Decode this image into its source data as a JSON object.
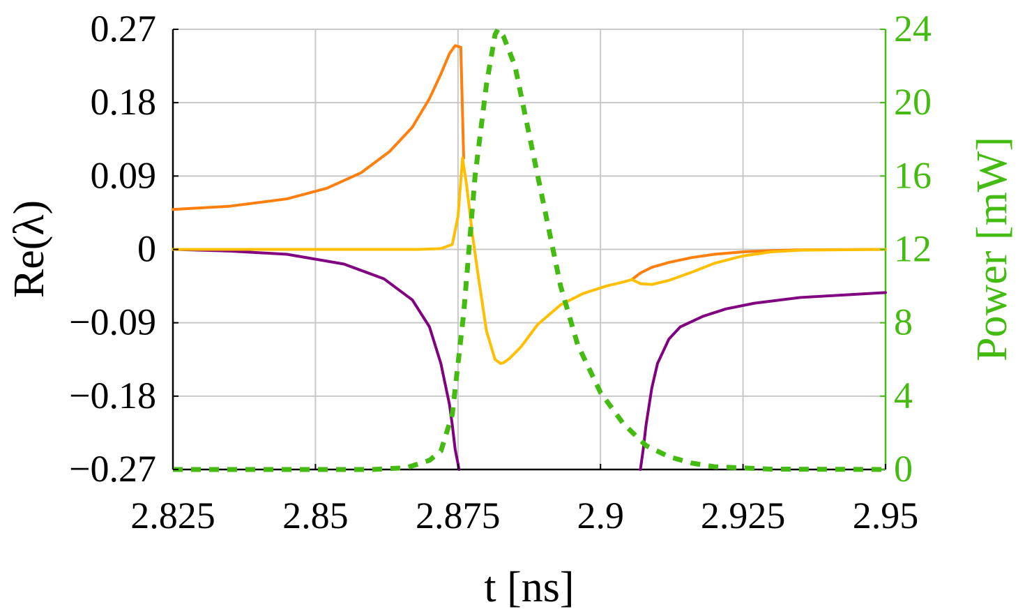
{
  "chart_data": {
    "type": "line",
    "title": "",
    "xlabel": "t [ns]",
    "ylabel_left": "Re(λ)",
    "ylabel_right": "Power [mW]",
    "xlim": [
      2.825,
      2.95
    ],
    "ylim_left": [
      -0.27,
      0.27
    ],
    "ylim_right": [
      0,
      24
    ],
    "grid": true,
    "legend": "none",
    "x_ticks": [
      "2.825",
      "2.85",
      "2.875",
      "2.9",
      "2.925",
      "2.95"
    ],
    "y_left_ticks": [
      "0.27",
      "0.18",
      "0.09",
      "0",
      "−0.09",
      "−0.18",
      "−0.27"
    ],
    "y_right_ticks": [
      "24",
      "20",
      "16",
      "12",
      "8",
      "4",
      "0"
    ],
    "colors": {
      "axis": "#000000",
      "grid": "#c8c8c8",
      "right_axis": "#44bb11",
      "orange": "#ff7f0e",
      "yellow": "#ffbf00",
      "purple": "#800080",
      "green": "#44bb11"
    },
    "series": [
      {
        "axis": "left",
        "color": "#ff7f0e",
        "style": "solid",
        "x": [
          2.825,
          2.835,
          2.845,
          2.852,
          2.858,
          2.863,
          2.867,
          2.87,
          2.872,
          2.8735,
          2.8745,
          2.8755,
          2.876
        ],
        "y": [
          0.049,
          0.053,
          0.062,
          0.075,
          0.094,
          0.12,
          0.15,
          0.185,
          0.215,
          0.24,
          0.25,
          0.248,
          0.112
        ]
      },
      {
        "axis": "left",
        "color": "#ff7f0e",
        "style": "solid",
        "x": [
          2.9055,
          2.907,
          2.909,
          2.912,
          2.916,
          2.92,
          2.925,
          2.93,
          2.935,
          2.95
        ],
        "y": [
          -0.037,
          -0.029,
          -0.022,
          -0.016,
          -0.01,
          -0.006,
          -0.003,
          -0.0015,
          -0.0005,
          0.0
        ]
      },
      {
        "axis": "left",
        "color": "#ffbf00",
        "style": "solid",
        "x": [
          2.825,
          2.86,
          2.868,
          2.872,
          2.874,
          2.875,
          2.8758,
          2.8765,
          2.8775,
          2.8785,
          2.88,
          2.8815,
          2.8825,
          2.883,
          2.884,
          2.886,
          2.889,
          2.893,
          2.897,
          2.901,
          2.904,
          2.9055,
          2.907,
          2.909,
          2.912,
          2.916,
          2.92,
          2.925,
          2.93,
          2.935,
          2.95
        ],
        "y": [
          0.0,
          0.0,
          0.0,
          0.001,
          0.006,
          0.04,
          0.112,
          0.08,
          0.02,
          -0.03,
          -0.1,
          -0.135,
          -0.14,
          -0.139,
          -0.134,
          -0.12,
          -0.092,
          -0.068,
          -0.054,
          -0.045,
          -0.04,
          -0.037,
          -0.042,
          -0.043,
          -0.038,
          -0.028,
          -0.017,
          -0.008,
          -0.003,
          -0.001,
          0.0
        ]
      },
      {
        "axis": "left",
        "color": "#800080",
        "style": "solid",
        "x": [
          2.825,
          2.835,
          2.845,
          2.855,
          2.862,
          2.867,
          2.87,
          2.872,
          2.8735,
          2.874,
          2.8745,
          2.8752
        ],
        "y": [
          0.0,
          -0.002,
          -0.006,
          -0.018,
          -0.036,
          -0.062,
          -0.095,
          -0.14,
          -0.19,
          -0.215,
          -0.245,
          -0.27
        ]
      },
      {
        "axis": "left",
        "color": "#800080",
        "style": "solid",
        "x": [
          2.907,
          2.9075,
          2.908,
          2.909,
          2.91,
          2.912,
          2.914,
          2.918,
          2.922,
          2.927,
          2.935,
          2.945,
          2.95
        ],
        "y": [
          -0.27,
          -0.245,
          -0.215,
          -0.17,
          -0.14,
          -0.11,
          -0.095,
          -0.082,
          -0.073,
          -0.066,
          -0.059,
          -0.055,
          -0.053
        ]
      },
      {
        "axis": "right",
        "color": "#44bb11",
        "style": "dashed",
        "x": [
          2.825,
          2.86,
          2.866,
          2.87,
          2.872,
          2.874,
          2.876,
          2.878,
          2.88,
          2.8815,
          2.882,
          2.883,
          2.885,
          2.887,
          2.89,
          2.893,
          2.896,
          2.9,
          2.904,
          2.908,
          2.912,
          2.916,
          2.92,
          2.93,
          2.95
        ],
        "y": [
          0.0,
          0.0,
          0.1,
          0.5,
          1.0,
          3.0,
          8.5,
          16.0,
          21.0,
          23.7,
          24.0,
          23.6,
          22.0,
          19.0,
          14.5,
          10.0,
          6.8,
          4.2,
          2.5,
          1.3,
          0.7,
          0.35,
          0.15,
          0.02,
          0.0
        ]
      }
    ]
  }
}
